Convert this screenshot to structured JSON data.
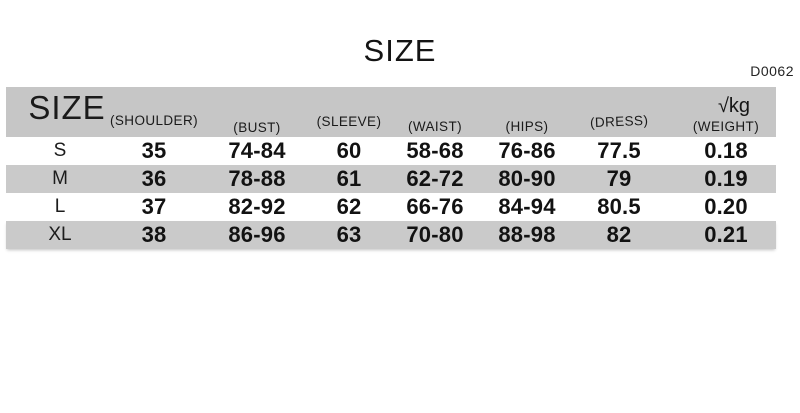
{
  "title": "SIZE",
  "product_code": "D0062",
  "header": {
    "size": "SIZE",
    "shoulder": "(SHOULDER)",
    "bust": "(BUST)",
    "sleeve": "(SLEEVE)",
    "waist": "(WAIST)",
    "hips": "(HIPS)",
    "dress": "(DRESS)",
    "weight_unit": "√kg",
    "weight": "(WEIGHT)"
  },
  "chart_data": {
    "type": "table",
    "title": "SIZE",
    "columns": [
      "SIZE",
      "(SHOULDER)",
      "(BUST)",
      "(SLEEVE)",
      "(WAIST)",
      "(HIPS)",
      "(DRESS)",
      "√kg (WEIGHT)"
    ],
    "rows": [
      [
        "S",
        "35",
        "74-84",
        "60",
        "58-68",
        "76-86",
        "77.5",
        "0.18"
      ],
      [
        "M",
        "36",
        "78-88",
        "61",
        "62-72",
        "80-90",
        "79",
        "0.19"
      ],
      [
        "L",
        "37",
        "82-92",
        "62",
        "66-76",
        "84-94",
        "80.5",
        "0.20"
      ],
      [
        "XL",
        "38",
        "86-96",
        "63",
        "70-80",
        "88-98",
        "82",
        "0.21"
      ]
    ],
    "layout": {
      "striped_rows": [
        "M",
        "XL"
      ],
      "header_background": "#c6c6c6",
      "stripe_background": "#cacaca"
    }
  },
  "colors": {
    "header_gray": "#c6c6c6",
    "stripe_gray": "#cacaca",
    "text": "#1d1d1d",
    "background": "#ffffff"
  }
}
